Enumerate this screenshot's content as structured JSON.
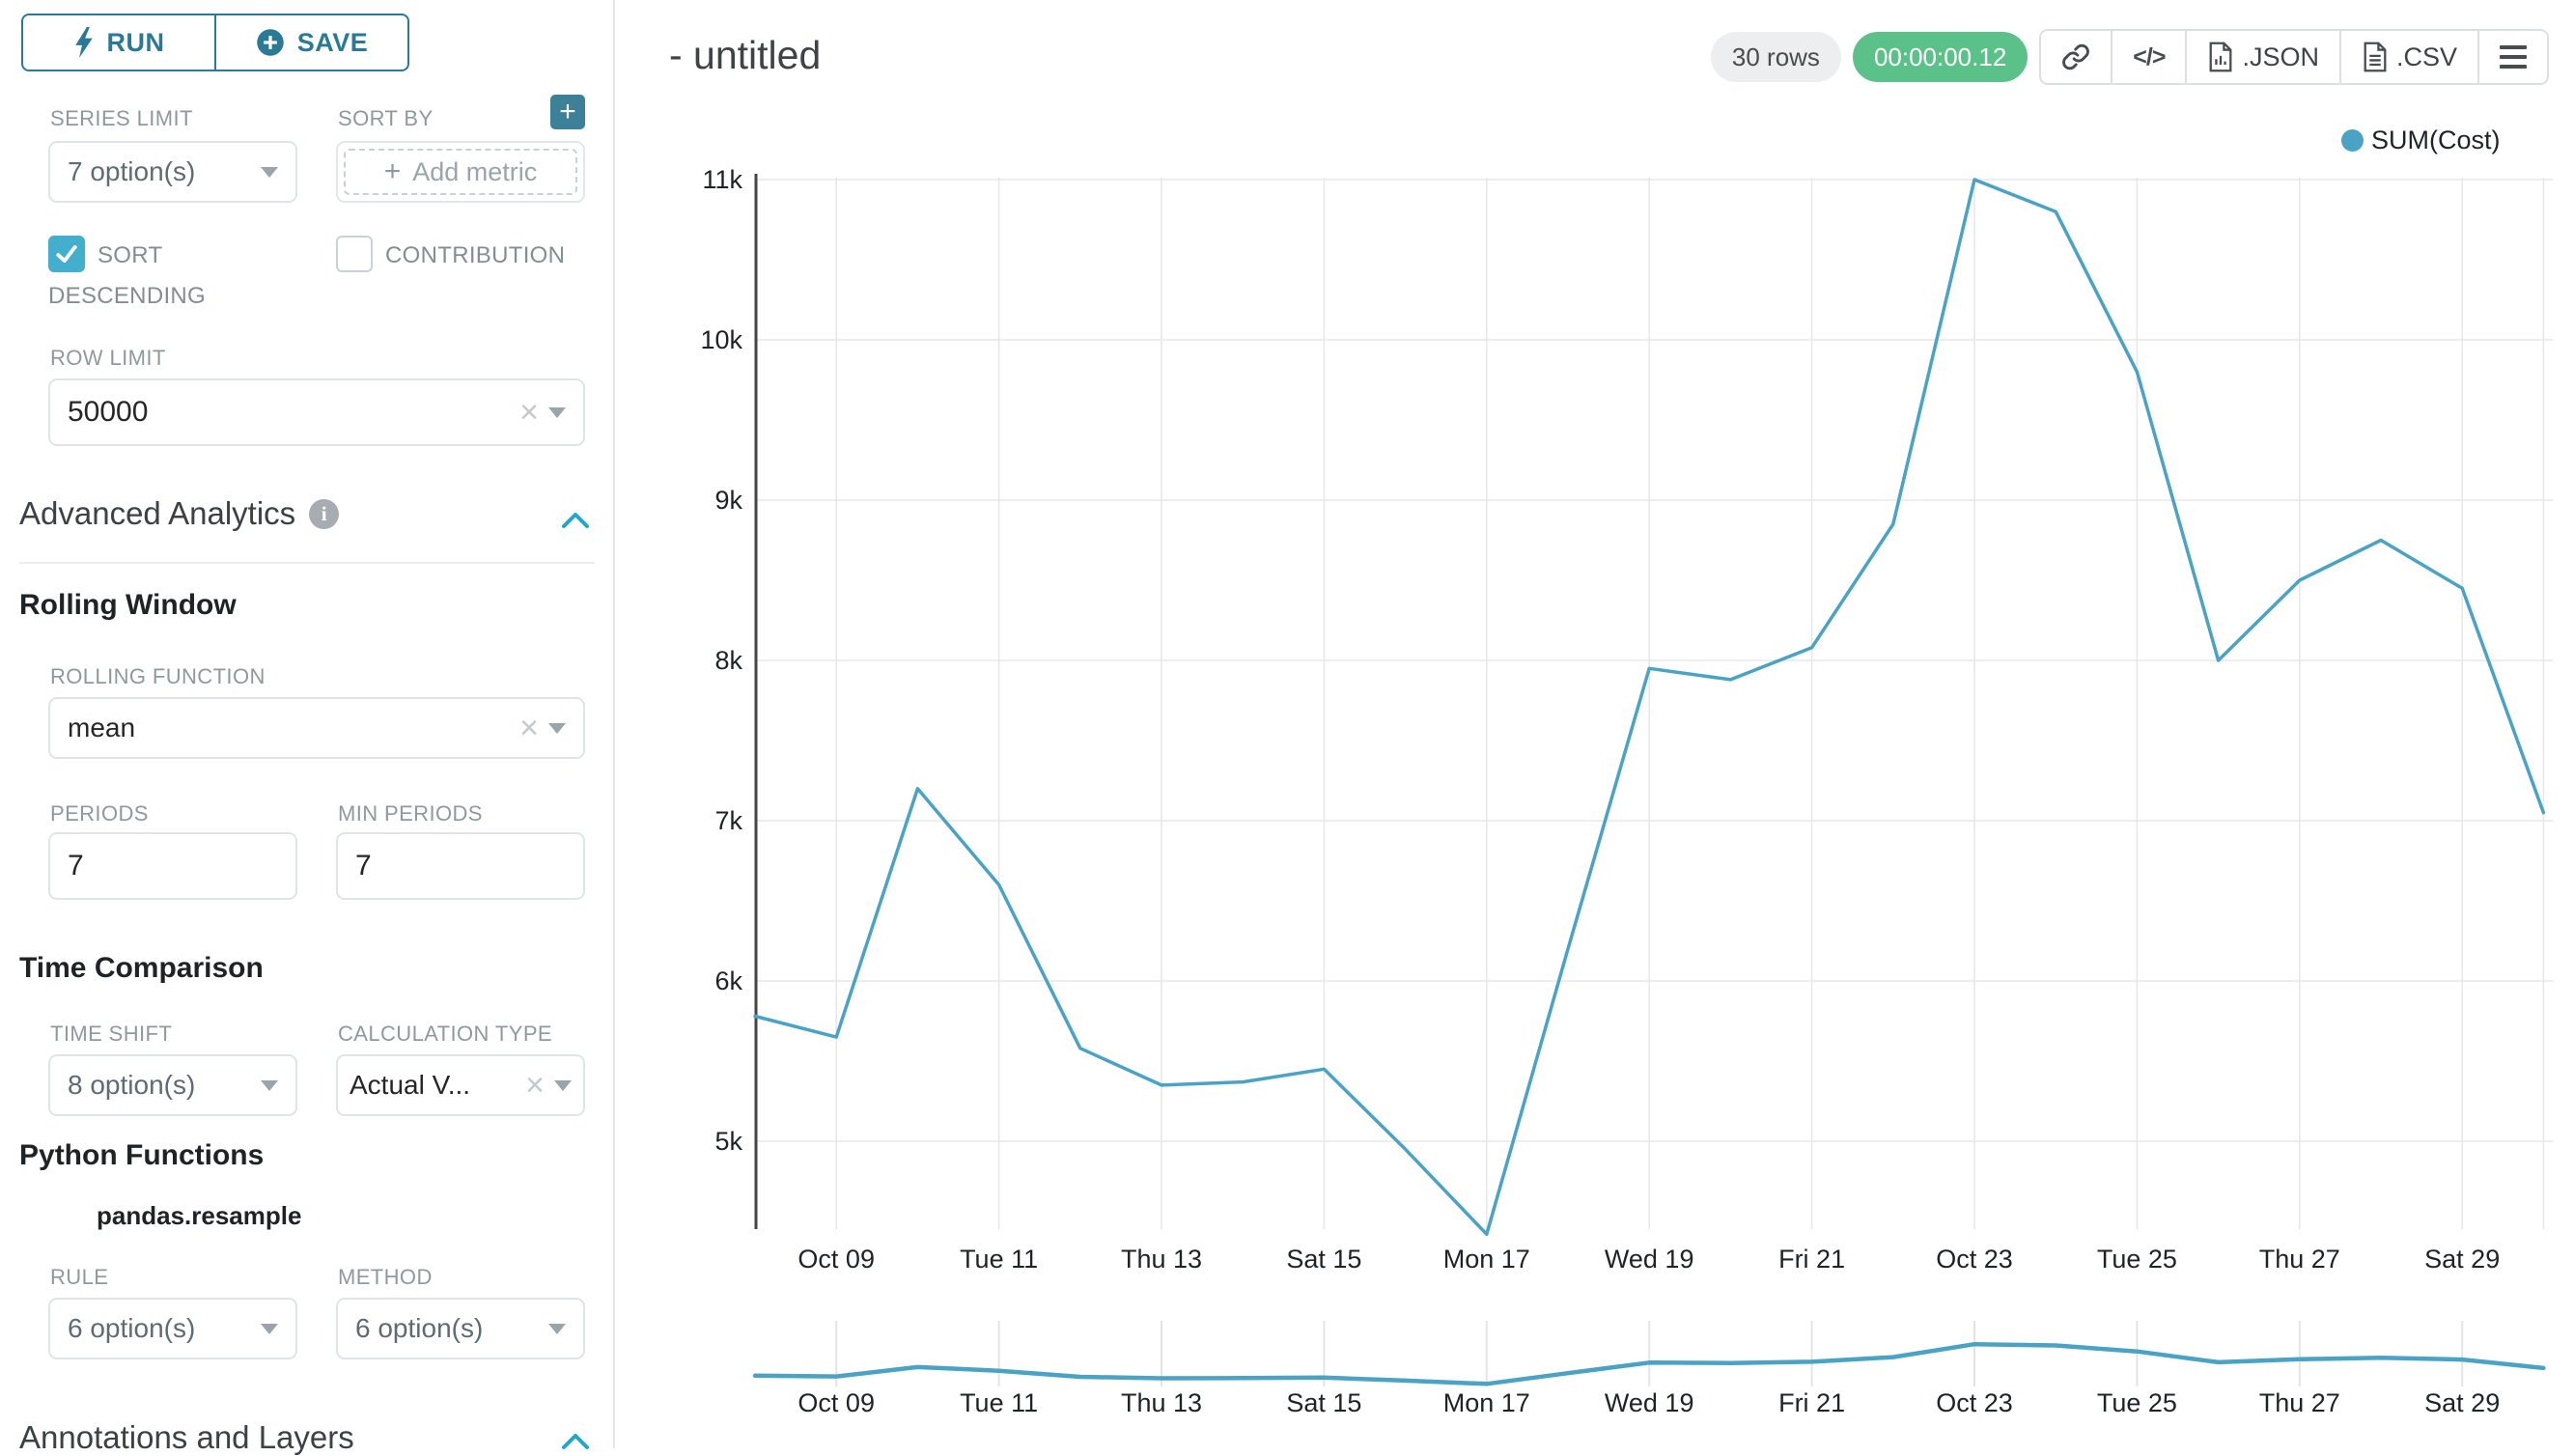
{
  "colors": {
    "accent_teal": "#2A7A96",
    "primary_blue": "#20A7C9",
    "checkbox_checked": "#43AFCC",
    "timer_green": "#5AC189",
    "line_blue": "#4AA3C5"
  },
  "icons": {
    "plus": "+",
    "clear": "×",
    "code": "</>",
    "info": "i"
  },
  "sidebar": {
    "run_label": "RUN",
    "save_label": "SAVE",
    "series_limit": {
      "label": "SERIES LIMIT",
      "value": "7 option(s)"
    },
    "sort_by": {
      "label": "SORT BY",
      "placeholder": "Add metric"
    },
    "sort_descending": {
      "label": "SORT DESCENDING",
      "checked": true
    },
    "contribution": {
      "label": "CONTRIBUTION",
      "checked": false
    },
    "row_limit": {
      "label": "ROW LIMIT",
      "value": "50000"
    },
    "advanced_analytics": {
      "title": "Advanced Analytics"
    },
    "rolling_window": {
      "title": "Rolling Window",
      "rolling_function": {
        "label": "ROLLING FUNCTION",
        "value": "mean"
      },
      "periods": {
        "label": "PERIODS",
        "value": "7"
      },
      "min_periods": {
        "label": "MIN PERIODS",
        "value": "7"
      }
    },
    "time_comparison": {
      "title": "Time Comparison",
      "time_shift": {
        "label": "TIME SHIFT",
        "value": "8 option(s)"
      },
      "calculation_type": {
        "label": "CALCULATION TYPE",
        "value": "Actual V..."
      }
    },
    "python_functions": {
      "title": "Python Functions",
      "subtitle": "pandas.resample",
      "rule": {
        "label": "RULE",
        "value": "6 option(s)"
      },
      "method": {
        "label": "METHOD",
        "value": "6 option(s)"
      }
    },
    "annotations": {
      "title": "Annotations and Layers"
    }
  },
  "header": {
    "title": "- untitled",
    "rows_badge": "30 rows",
    "timer_badge": "00:00:00.12",
    "export_json_label": ".JSON",
    "export_csv_label": ".CSV"
  },
  "chart_data": {
    "type": "line",
    "legend_position": "top-right",
    "grid": true,
    "x": [
      "Oct 08",
      "Oct 09",
      "Oct 10",
      "Oct 11",
      "Oct 12",
      "Oct 13",
      "Oct 14",
      "Oct 15",
      "Oct 16",
      "Oct 17",
      "Oct 18",
      "Oct 19",
      "Oct 20",
      "Oct 21",
      "Oct 22",
      "Oct 23",
      "Oct 24",
      "Oct 25",
      "Oct 26",
      "Oct 27",
      "Oct 28",
      "Oct 29",
      "Oct 30"
    ],
    "series": [
      {
        "name": "SUM(Cost)",
        "color": "#4AA3C5",
        "values": [
          5780,
          5650,
          7200,
          6600,
          5580,
          5350,
          5370,
          5450,
          4950,
          4420,
          6200,
          7950,
          7880,
          8080,
          8850,
          11000,
          10800,
          9800,
          8000,
          8500,
          8750,
          8450,
          7050
        ]
      }
    ],
    "x_tick_labels": [
      "Oct 09",
      "Tue 11",
      "Thu 13",
      "Sat 15",
      "Mon 17",
      "Wed 19",
      "Fri 21",
      "Oct 23",
      "Tue 25",
      "Thu 27",
      "Sat 29"
    ],
    "x_tick_days": [
      1,
      3,
      5,
      7,
      9,
      11,
      13,
      15,
      17,
      19,
      21
    ],
    "y_ticks": [
      {
        "label": "11k",
        "value": 11000
      },
      {
        "label": "10k",
        "value": 10000
      },
      {
        "label": "9k",
        "value": 9000
      },
      {
        "label": "8k",
        "value": 8000
      },
      {
        "label": "7k",
        "value": 7000
      },
      {
        "label": "6k",
        "value": 6000
      },
      {
        "label": "5k",
        "value": 5000
      }
    ],
    "ylim": [
      4300,
      11200
    ],
    "xlabel": "",
    "ylabel": "",
    "has_mini_preview_axis": true
  }
}
